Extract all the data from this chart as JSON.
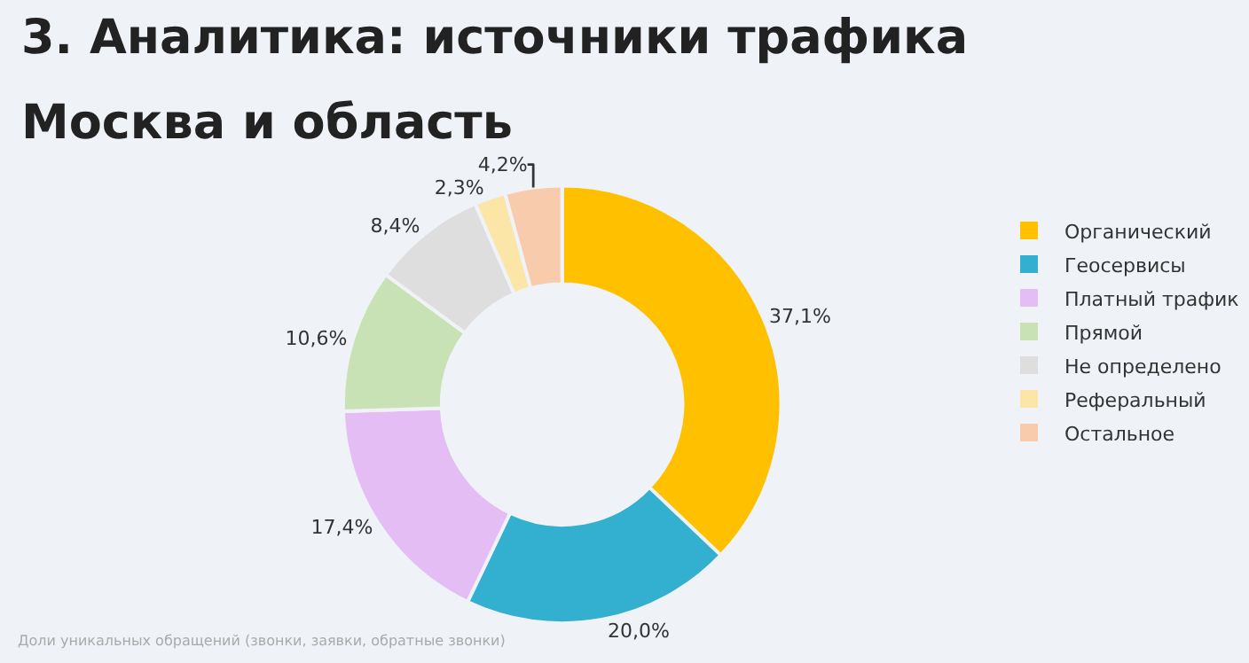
{
  "chart_data": {
    "type": "donut",
    "title": "3. Аналитика: источники трафика",
    "subtitle": "Москва и область",
    "categories": [
      "Органический",
      "Геосервисы",
      "Платный трафик",
      "Прямой",
      "Не определено",
      "Реферальный",
      "Остальное"
    ],
    "values": [
      37.1,
      20.0,
      17.4,
      10.6,
      8.4,
      2.3,
      4.2
    ],
    "colors": [
      "#ffc000",
      "#33afd0",
      "#e4bdf5",
      "#c8e2b6",
      "#dedede",
      "#fbe6a8",
      "#f8cbad"
    ],
    "value_labels": [
      "37,1%",
      "20,0%",
      "17,4%",
      "10,6%",
      "8,4%",
      "2,3%",
      "4,2%"
    ],
    "legend": "right",
    "annotations": [
      "Доли уникальных обращений (звонки, заявки, обратные звонки)"
    ]
  }
}
